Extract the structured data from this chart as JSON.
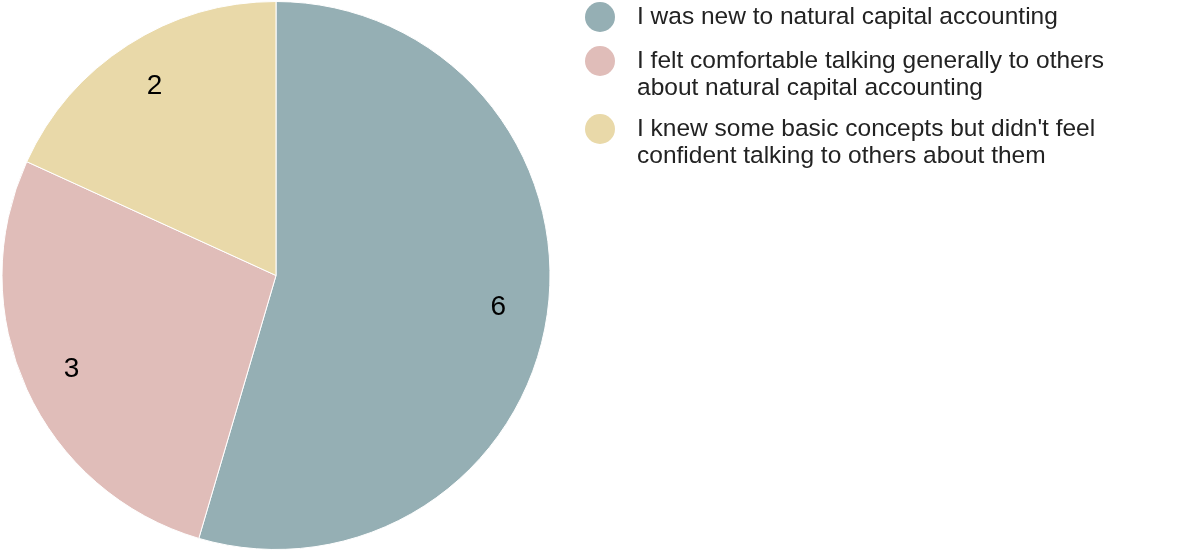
{
  "chart_data": {
    "type": "pie",
    "categories": [
      "I was new to natural capital accounting",
      "I felt comfortable talking generally to others about natural capital accounting",
      "I knew some basic concepts but didn't feel confident talking to others about them"
    ],
    "values": [
      6,
      3,
      2
    ],
    "colors": [
      "#95afb4",
      "#e0bdb9",
      "#e9d9a9"
    ],
    "data_labels": true,
    "legend": "right"
  }
}
